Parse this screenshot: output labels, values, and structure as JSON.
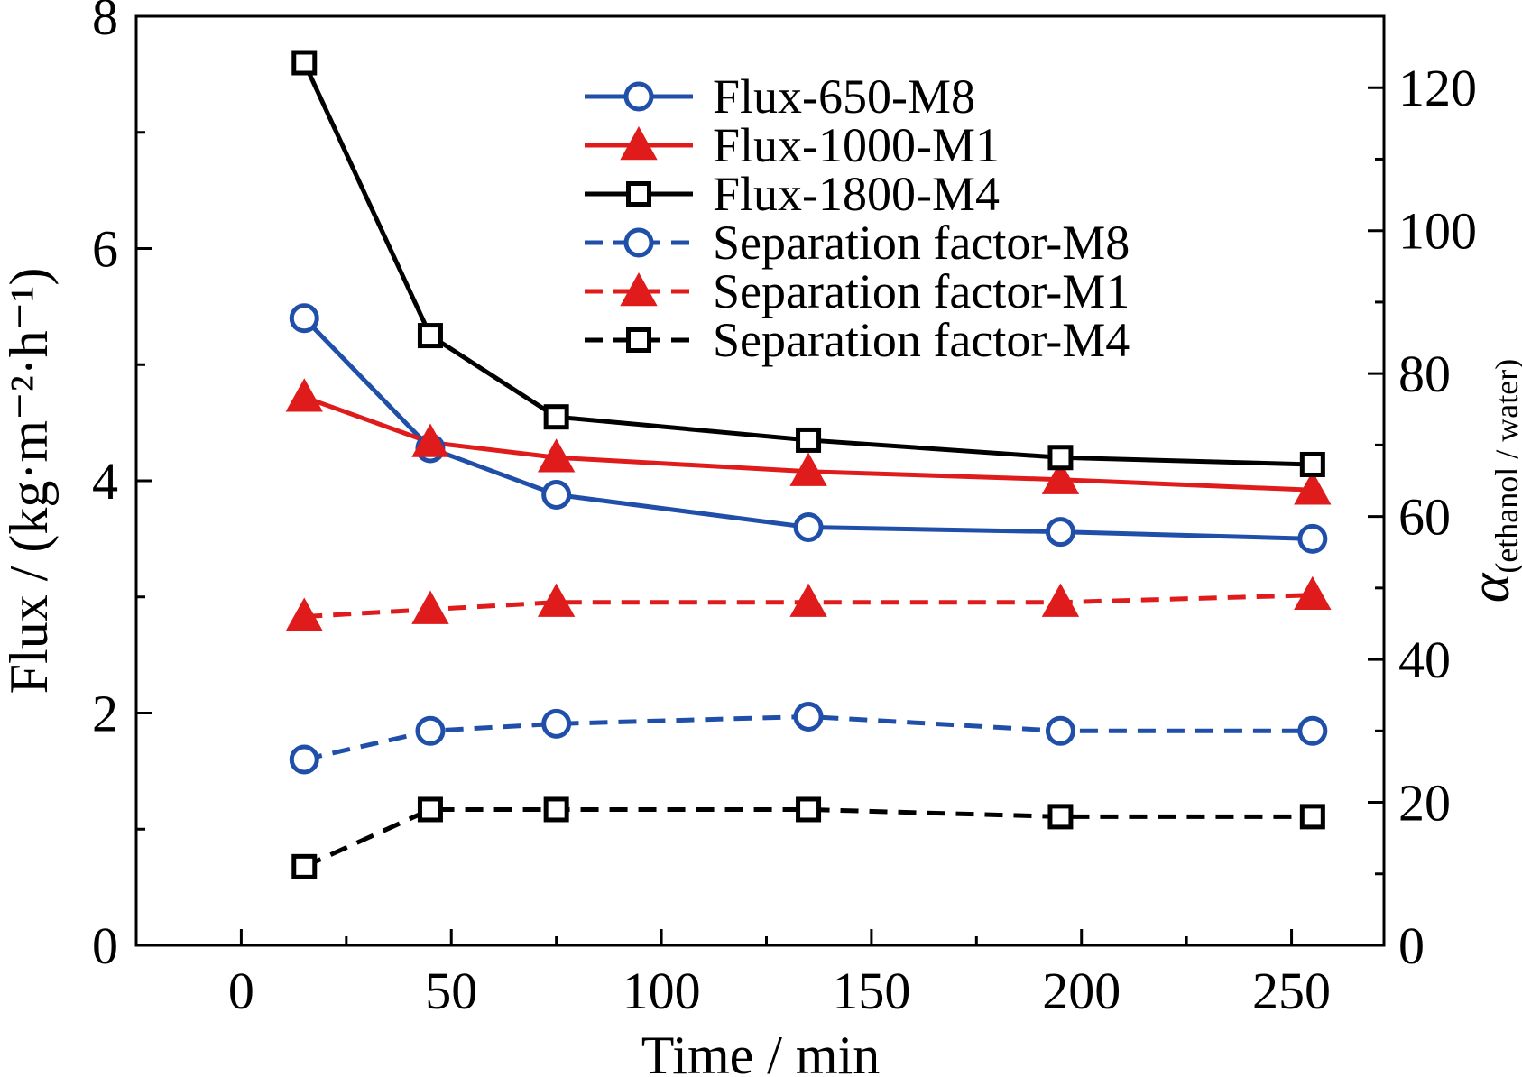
{
  "chart_data": {
    "type": "line",
    "xlabel": "Time / min",
    "ylabel_left": "Flux / (kg·m⁻²·h⁻¹)",
    "ylabel_right_symbol": "α",
    "ylabel_right_subscript": "(ethanol / water)",
    "xlim": [
      -25,
      272
    ],
    "ylim_left": [
      0,
      8
    ],
    "ylim_right": [
      0,
      130
    ],
    "x_ticks": [
      0,
      50,
      100,
      150,
      200,
      250
    ],
    "x_tick_labels": [
      "0",
      "50",
      "100",
      "150",
      "200",
      "250"
    ],
    "y_left_ticks": [
      0,
      2,
      4,
      6,
      8
    ],
    "y_left_tick_labels": [
      "0",
      "2",
      "4",
      "6",
      "8"
    ],
    "y_right_ticks": [
      0,
      20,
      40,
      60,
      80,
      100,
      120
    ],
    "y_right_tick_labels": [
      "0",
      "20",
      "40",
      "60",
      "80",
      "100",
      "120"
    ],
    "grid": false,
    "legend_position": "top-right",
    "x": [
      15,
      45,
      75,
      135,
      195,
      255
    ],
    "series": [
      {
        "name": "Flux-650-M8",
        "axis": "left",
        "color": "#1f4fa8",
        "marker": "circle",
        "dashed": false,
        "values": [
          5.4,
          4.28,
          3.88,
          3.6,
          3.56,
          3.5
        ]
      },
      {
        "name": "Flux-1000-M1",
        "axis": "left",
        "color": "#e01b1b",
        "marker": "triangle",
        "dashed": false,
        "values": [
          4.72,
          4.33,
          4.2,
          4.08,
          4.01,
          3.92
        ]
      },
      {
        "name": "Flux-1800-M4",
        "axis": "left",
        "color": "#000000",
        "marker": "square",
        "dashed": false,
        "values": [
          7.6,
          5.25,
          4.55,
          4.35,
          4.2,
          4.14
        ]
      },
      {
        "name": "Separation factor-M8",
        "axis": "right",
        "color": "#1f4fa8",
        "marker": "circle",
        "dashed": true,
        "values": [
          26,
          30,
          31,
          32,
          30,
          30
        ]
      },
      {
        "name": "Separation factor-M1",
        "axis": "right",
        "color": "#e01b1b",
        "marker": "triangle",
        "dashed": true,
        "values": [
          46,
          47,
          48,
          48,
          48,
          49
        ]
      },
      {
        "name": "Separation factor-M4",
        "axis": "right",
        "color": "#000000",
        "marker": "square",
        "dashed": true,
        "values": [
          11,
          19,
          19,
          19,
          18,
          18
        ]
      }
    ]
  }
}
